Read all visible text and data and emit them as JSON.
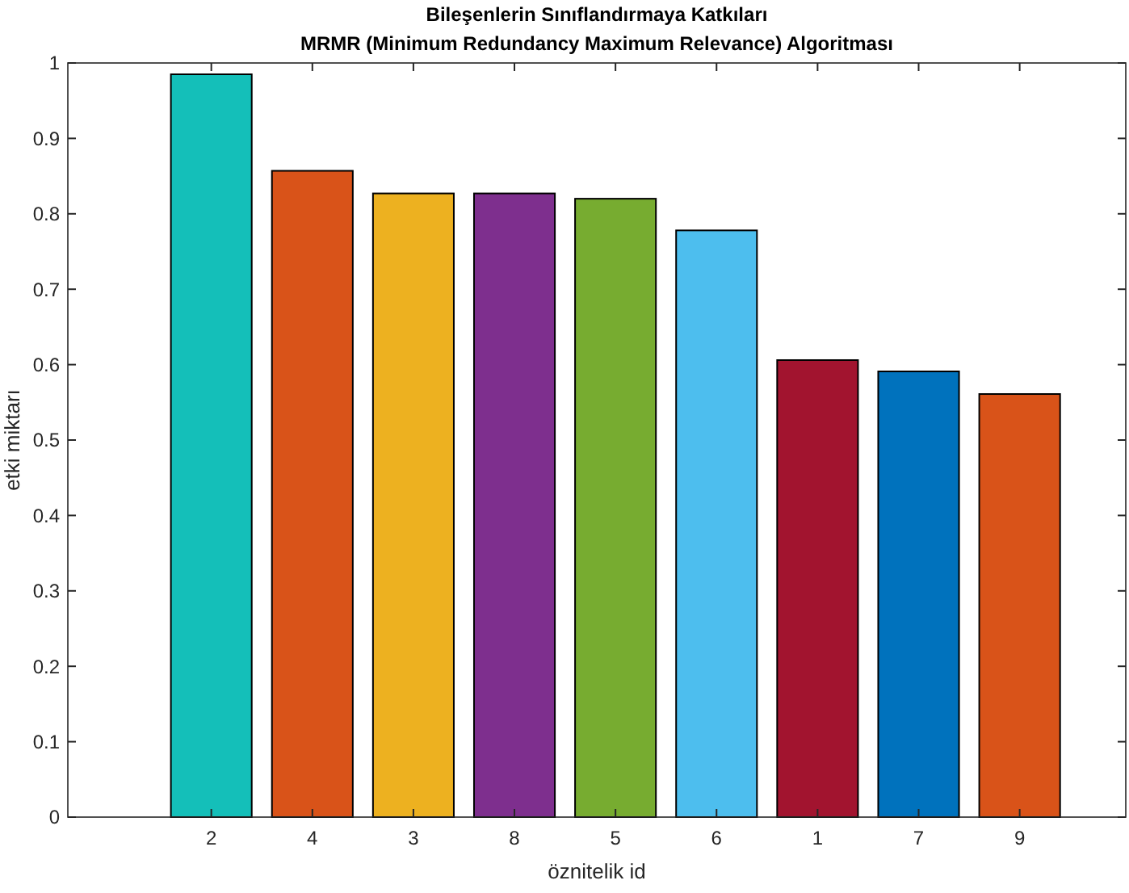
{
  "chart_data": {
    "type": "bar",
    "title": "Bileşenlerin Sınıflandırmaya Katkıları",
    "subtitle": "MRMR (Minimum Redundancy Maximum Relevance) Algoritması",
    "xlabel": "öznitelik id",
    "ylabel": "etki miktarı",
    "categories": [
      "2",
      "4",
      "3",
      "8",
      "5",
      "6",
      "1",
      "7",
      "9"
    ],
    "values": [
      0.985,
      0.857,
      0.827,
      0.827,
      0.82,
      0.778,
      0.606,
      0.591,
      0.561
    ],
    "colors": [
      "#14bfb9",
      "#d95319",
      "#edb120",
      "#7e2f8e",
      "#77ac30",
      "#4dbeee",
      "#a2142f",
      "#0072bd",
      "#d95319"
    ],
    "ylim": [
      0,
      1
    ],
    "yticks": [
      0,
      0.1,
      0.2,
      0.3,
      0.4,
      0.5,
      0.6,
      0.7,
      0.8,
      0.9,
      1
    ],
    "grid": false
  }
}
